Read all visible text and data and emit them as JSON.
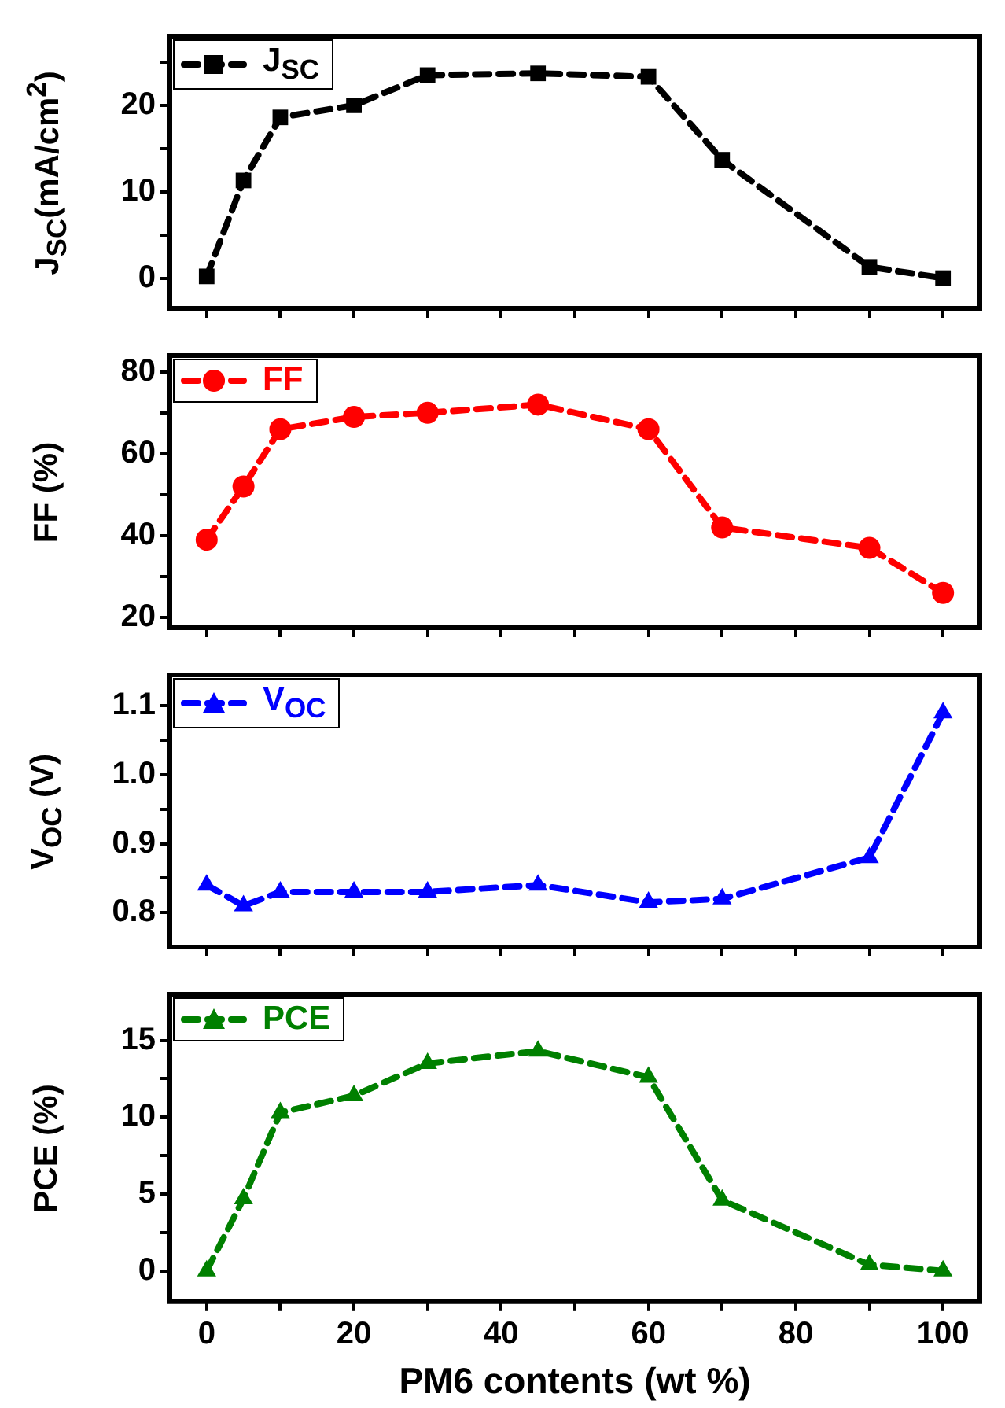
{
  "chart_data": [
    {
      "type": "line",
      "x": [
        0,
        5,
        10,
        20,
        30,
        45,
        60,
        70,
        90,
        100
      ],
      "xlim": [
        -5,
        105
      ],
      "xticks": [
        0,
        {
          "value": 10,
          "label": null
        },
        20,
        {
          "value": 30,
          "label": null
        },
        40,
        {
          "value": 50,
          "label": null
        },
        60,
        {
          "value": 70,
          "label": null
        },
        80,
        {
          "value": 90,
          "label": null
        },
        100
      ],
      "tick_labels": "y",
      "ylabel": "J$_{SC}$(mA/cm$^{2}$)",
      "ylim": [
        -3.5,
        28
      ],
      "yticks": [
        0,
        {
          "value": 5,
          "label": null
        },
        10,
        {
          "value": 15,
          "label": null
        },
        20,
        {
          "value": 25,
          "label": null
        }
      ],
      "legend": "top left",
      "marker": "square",
      "line_style": "dashed",
      "series": [
        {
          "name": "J$_{SC}$",
          "color": "#000000",
          "values": [
            0.2,
            11.3,
            18.6,
            20,
            23.5,
            23.7,
            23.3,
            13.7,
            1.3,
            0
          ]
        }
      ]
    },
    {
      "type": "line",
      "x": [
        0,
        5,
        10,
        20,
        30,
        45,
        60,
        70,
        90,
        100
      ],
      "xlim": [
        -5,
        105
      ],
      "xticks": [
        0,
        {
          "value": 10,
          "label": null
        },
        20,
        {
          "value": 30,
          "label": null
        },
        40,
        {
          "value": 50,
          "label": null
        },
        60,
        {
          "value": 70,
          "label": null
        },
        80,
        {
          "value": 90,
          "label": null
        },
        100
      ],
      "tick_labels": "y",
      "ylabel": "FF (%)",
      "ylim": [
        17.5,
        84
      ],
      "yticks": [
        20,
        {
          "value": 30,
          "label": null
        },
        40,
        {
          "value": 50,
          "label": null
        },
        60,
        {
          "value": 70,
          "label": null
        },
        80
      ],
      "legend": "top left",
      "marker": "circle",
      "line_style": "dashed",
      "series": [
        {
          "name": "FF",
          "color": "#ff0000",
          "values": [
            39,
            52,
            66,
            69,
            70,
            72,
            66,
            42,
            37,
            26
          ]
        }
      ]
    },
    {
      "type": "line",
      "x": [
        0,
        5,
        10,
        20,
        30,
        45,
        60,
        70,
        90,
        100
      ],
      "xlim": [
        -5,
        105
      ],
      "xticks": [
        0,
        {
          "value": 10,
          "label": null
        },
        20,
        {
          "value": 30,
          "label": null
        },
        40,
        {
          "value": 50,
          "label": null
        },
        60,
        {
          "value": 70,
          "label": null
        },
        80,
        {
          "value": 90,
          "label": null
        },
        100
      ],
      "tick_labels": "y",
      "ylabel": "V$_{OC}$ (V)",
      "ylim": [
        0.75,
        1.145
      ],
      "yticks": [
        0.8,
        {
          "value": 0.85,
          "label": null
        },
        0.9,
        {
          "value": 0.95,
          "label": null
        },
        {
          "value": 1,
          "label": "1.0"
        },
        {
          "value": 1.05,
          "label": null
        },
        1.1
      ],
      "legend": "top left",
      "marker": "triangle",
      "line_style": "dashed",
      "series": [
        {
          "name": "V$_{OC}$",
          "color": "#0000ff",
          "values": [
            0.84,
            0.81,
            0.83,
            0.83,
            0.83,
            0.84,
            0.815,
            0.82,
            0.88,
            1.09
          ]
        }
      ]
    },
    {
      "type": "line",
      "x": [
        0,
        5,
        10,
        20,
        30,
        45,
        60,
        70,
        90,
        100
      ],
      "xlim": [
        -5,
        105
      ],
      "xticks": [
        0,
        {
          "value": 10,
          "label": null
        },
        20,
        {
          "value": 30,
          "label": null
        },
        40,
        {
          "value": 50,
          "label": null
        },
        60,
        {
          "value": 70,
          "label": null
        },
        80,
        {
          "value": 90,
          "label": null
        },
        100
      ],
      "xlabel": "PM6 contents (wt %)",
      "ylabel": "PCE (%)",
      "ylim": [
        -2,
        18
      ],
      "yticks": [
        0,
        {
          "value": 2.5,
          "label": null
        },
        5,
        {
          "value": 7.5,
          "label": null
        },
        10,
        {
          "value": 12.5,
          "label": null
        },
        15
      ],
      "legend": "top left",
      "marker": "triangle",
      "line_style": "dashed",
      "series": [
        {
          "name": "PCE",
          "color": "#008000",
          "values": [
            0,
            4.7,
            10.3,
            11.4,
            13.5,
            14.3,
            12.6,
            4.6,
            0.4,
            0
          ]
        }
      ]
    }
  ]
}
